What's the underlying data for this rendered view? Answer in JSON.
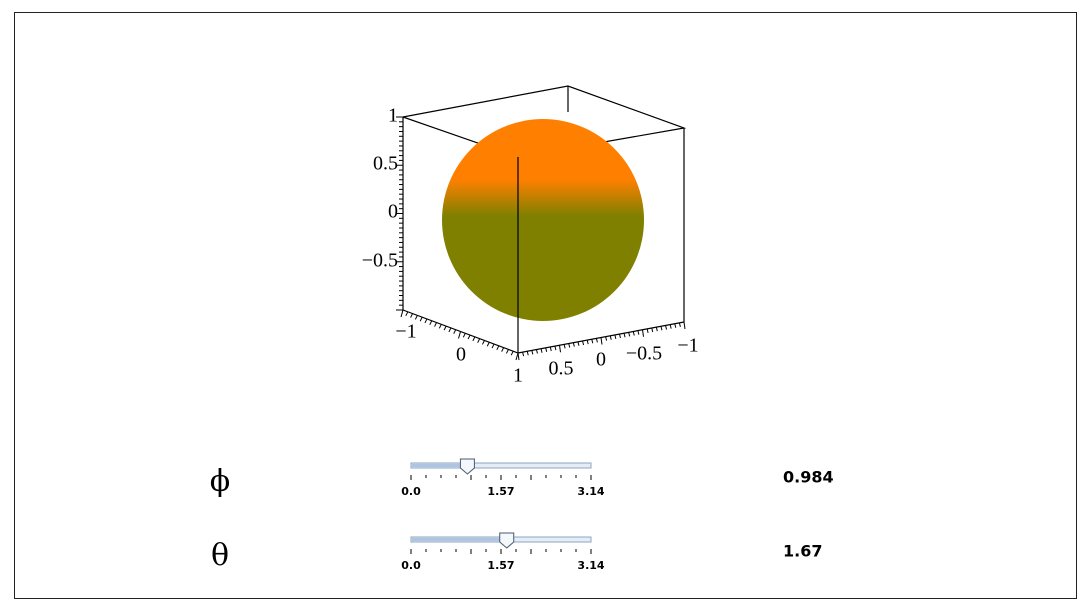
{
  "plot": {
    "z_axis_labels": [
      "1",
      "0.5",
      "0",
      "−0.5"
    ],
    "x_axis_labels": [
      "−1",
      "0",
      "1"
    ],
    "y_axis_labels": [
      "0.5",
      "0",
      "−0.5",
      "−1"
    ]
  },
  "sliders": [
    {
      "symbol": "ϕ",
      "value": 0.984,
      "ticks": [
        {
          "value": 0,
          "label": "0.0"
        },
        1.57,
        3.14
      ]
    },
    {
      "symbol": "θ",
      "value": 1.67,
      "ticks": [
        {
          "value": 0,
          "label": "0.0"
        },
        1.57,
        3.14
      ]
    }
  ]
}
